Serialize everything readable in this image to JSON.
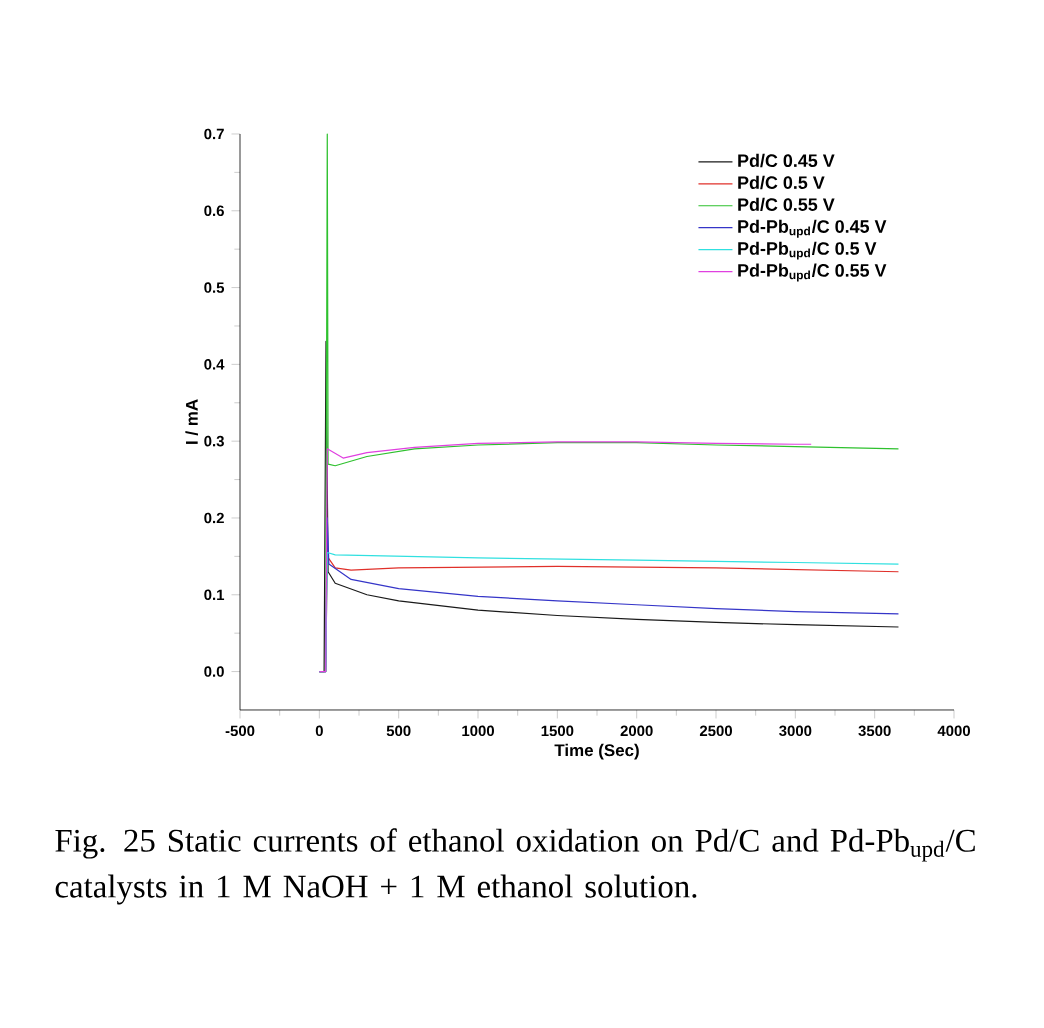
{
  "chart_data": {
    "type": "line",
    "xlabel": "Time (Sec)",
    "ylabel": "I / mA",
    "xlim": [
      -500,
      4000
    ],
    "ylim": [
      -0.05,
      0.7
    ],
    "xticks": [
      -500,
      0,
      500,
      1000,
      1500,
      2000,
      2500,
      3000,
      3500,
      4000
    ],
    "yticks": [
      {
        "value": 0,
        "label": "0.0"
      },
      0.1,
      0.2,
      0.3,
      0.4,
      0.5,
      0.6,
      0.7
    ],
    "legend": "top right",
    "grid": false,
    "marker": "none",
    "line_style": "solid",
    "series": [
      {
        "name": "Pd/C 0.45 V",
        "color": "#1a1a1a",
        "x": [
          0,
          30,
          42,
          55,
          100,
          300,
          500,
          1000,
          1500,
          2000,
          2500,
          3000,
          3650
        ],
        "values": [
          0,
          0,
          0.43,
          0.13,
          0.115,
          0.1,
          0.092,
          0.08,
          0.073,
          0.068,
          0.064,
          0.061,
          0.058
        ]
      },
      {
        "name": "Pd/C 0.5 V",
        "color": "#e0302a",
        "x": [
          0,
          40,
          50,
          100,
          200,
          500,
          1500,
          2500,
          3650
        ],
        "values": [
          0,
          0,
          0.15,
          0.135,
          0.132,
          0.135,
          0.137,
          0.135,
          0.13
        ]
      },
      {
        "name": "Pd/C 0.55 V",
        "color": "#2ec12e",
        "x": [
          0,
          40,
          50,
          55,
          100,
          300,
          600,
          1000,
          1500,
          2000,
          2500,
          3000,
          3650
        ],
        "values": [
          0,
          0,
          0.7,
          0.27,
          0.268,
          0.28,
          0.29,
          0.295,
          0.298,
          0.298,
          0.295,
          0.293,
          0.29
        ]
      },
      {
        "name": "Pd-Pb$_{upd}$/C 0.45 V",
        "color": "#3535c8",
        "x": [
          0,
          40,
          50,
          60,
          200,
          500,
          1000,
          1500,
          2000,
          2500,
          3000,
          3650
        ],
        "values": [
          0,
          0,
          0.2,
          0.14,
          0.12,
          0.108,
          0.098,
          0.092,
          0.087,
          0.082,
          0.078,
          0.075
        ]
      },
      {
        "name": "Pd-Pb$_{upd}$/C 0.5 V",
        "color": "#30e0e0",
        "x": [
          0,
          40,
          50,
          100,
          1000,
          2000,
          3000,
          3650
        ],
        "values": [
          0,
          0,
          0.155,
          0.152,
          0.148,
          0.145,
          0.142,
          0.14
        ]
      },
      {
        "name": "Pd-Pb$_{upd}$/C 0.55 V",
        "color": "#e040e0",
        "x": [
          0,
          40,
          50,
          150,
          300,
          600,
          1000,
          1500,
          2000,
          2500,
          3000,
          3100
        ],
        "values": [
          0,
          0,
          0.29,
          0.278,
          0.285,
          0.292,
          0.297,
          0.299,
          0.299,
          0.297,
          0.296,
          0.296
        ]
      }
    ],
    "annotations": [
      "Fig. 25 Static currents of ethanol oxidation on Pd/C and Pd-Pb$_{upd}$/C catalysts in 1 M NaOH + 1 M ethanol solution."
    ]
  }
}
